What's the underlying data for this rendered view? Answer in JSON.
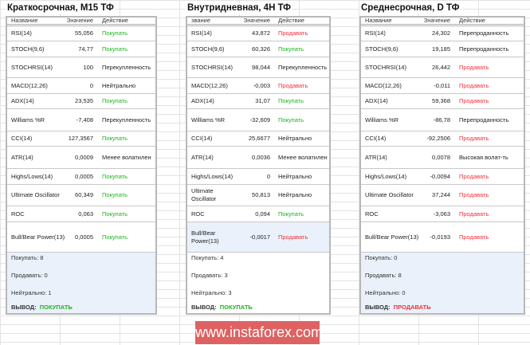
{
  "headers": {
    "name": "Название",
    "name_cut": "звание",
    "value": "Значение",
    "action": "Действие"
  },
  "summary_labels": {
    "buy": "Покупать: ",
    "sell": "Продавать: ",
    "neutral": "Нейтрально: ",
    "conclusion": "ВЫВОД:"
  },
  "colors": {
    "buy": "#1db31d",
    "sell": "#f0303a",
    "summary_bg": "#eaf1fa",
    "watermark_bg": "#de6262"
  },
  "panels": [
    {
      "title": "Краткосрочная, М15 ТФ",
      "rows": [
        {
          "name": "RSI(14)",
          "value": "55,056",
          "action": "Покупать",
          "type": "buy"
        },
        {
          "name": "STOCH(9,6)",
          "value": "74,77",
          "action": "Покупать",
          "type": "buy"
        },
        {
          "name": "STOCHRSI(14)",
          "value": "100",
          "action": "Перекупленность",
          "type": "neutral"
        },
        {
          "name": "MACD(12,26)",
          "value": "0",
          "action": "Нейтрально",
          "type": "neutral"
        },
        {
          "name": "ADX(14)",
          "value": "23,535",
          "action": "Покупать",
          "type": "buy"
        },
        {
          "name": "Williams %R",
          "value": "-7,408",
          "action": "Перекупленность",
          "type": "neutral"
        },
        {
          "name": "CCI(14)",
          "value": "127,3567",
          "action": "Покупать",
          "type": "buy"
        },
        {
          "name": "ATR(14)",
          "value": "0,0009",
          "action": "Менее волатилен",
          "type": "neutral"
        },
        {
          "name": "Highs/Lows(14)",
          "value": "0,0005",
          "action": "Покупать",
          "type": "buy"
        },
        {
          "name": "Ultimate Oscillator",
          "value": "60,349",
          "action": "Покупать",
          "type": "buy"
        },
        {
          "name": "ROC",
          "value": "0,063",
          "action": "Покупать",
          "type": "buy"
        },
        {
          "name": "Bull/Bear Power(13)",
          "value": "0,0005",
          "action": "Покупать",
          "type": "buy"
        }
      ],
      "buy": "8",
      "sell": "0",
      "neutral": "1",
      "conclusion": "ПОКУПАТЬ",
      "conclusion_type": "buy"
    },
    {
      "title": "Внутридневная, 4Н ТФ",
      "rows": [
        {
          "name": "RSI(14)",
          "value": "43,872",
          "action": "Продавать",
          "type": "sell"
        },
        {
          "name": "STOCH(9,6)",
          "value": "60,326",
          "action": "Покупать",
          "type": "buy"
        },
        {
          "name": "STOCHRSI(14)",
          "value": "98,044",
          "action": "Перекупленность",
          "type": "neutral"
        },
        {
          "name": "MACD(12,26)",
          "value": "-0,003",
          "action": "Продавать",
          "type": "sell"
        },
        {
          "name": "ADX(14)",
          "value": "31,07",
          "action": "Покупать",
          "type": "buy"
        },
        {
          "name": "Williams %R",
          "value": "-32,609",
          "action": "Покупать",
          "type": "buy"
        },
        {
          "name": "CCI(14)",
          "value": "25,6677",
          "action": "Нейтрально",
          "type": "neutral"
        },
        {
          "name": "ATR(14)",
          "value": "0,0036",
          "action": "Менее волатилен",
          "type": "neutral"
        },
        {
          "name": "Highs/Lows(14)",
          "value": "0",
          "action": "Нейтрально",
          "type": "neutral"
        },
        {
          "name": "Ultimate Oscillator",
          "value": "50,813",
          "action": "Нейтрально",
          "type": "neutral"
        },
        {
          "name": "ROC",
          "value": "0,094",
          "action": "Покупать",
          "type": "buy"
        },
        {
          "name": "Bull/Bear Power(13)",
          "value": "-0,0017",
          "action": "Продавать",
          "type": "sell"
        }
      ],
      "buy": "4",
      "sell": "3",
      "neutral": "3",
      "conclusion": "ПОКУПАТЬ",
      "conclusion_type": "buy"
    },
    {
      "title": "Среднесрочная, D ТФ",
      "rows": [
        {
          "name": "RSI(14)",
          "value": "24,302",
          "action": "Перепроданность",
          "type": "neutral"
        },
        {
          "name": "STOCH(9,6)",
          "value": "19,185",
          "action": "Перепроданность",
          "type": "neutral"
        },
        {
          "name": "STOCHRSI(14)",
          "value": "26,442",
          "action": "Продавать",
          "type": "sell"
        },
        {
          "name": "MACD(12,26)",
          "value": "-0,011",
          "action": "Продавать",
          "type": "sell"
        },
        {
          "name": "ADX(14)",
          "value": "59,368",
          "action": "Продавать",
          "type": "sell"
        },
        {
          "name": "Williams %R",
          "value": "-86,78",
          "action": "Перепроданность",
          "type": "neutral"
        },
        {
          "name": "CCI(14)",
          "value": "-92,2506",
          "action": "Продавать",
          "type": "sell"
        },
        {
          "name": "ATR(14)",
          "value": "0,0078",
          "action": "Высокая волат-ть",
          "type": "neutral"
        },
        {
          "name": "Highs/Lows(14)",
          "value": "-0,0094",
          "action": "Продавать",
          "type": "sell"
        },
        {
          "name": "Ultimate Oscillator",
          "value": "37,244",
          "action": "Продавать",
          "type": "sell"
        },
        {
          "name": "ROC",
          "value": "-3,063",
          "action": "Продавать",
          "type": "sell"
        },
        {
          "name": "Bull/Bear Power(13)",
          "value": "-0,0193",
          "action": "Продавать",
          "type": "sell"
        }
      ],
      "buy": "0",
      "sell": "8",
      "neutral": "0",
      "conclusion": "ПРОДАВАТЬ",
      "conclusion_type": "sell"
    }
  ],
  "watermark": "www.instaforex.com"
}
